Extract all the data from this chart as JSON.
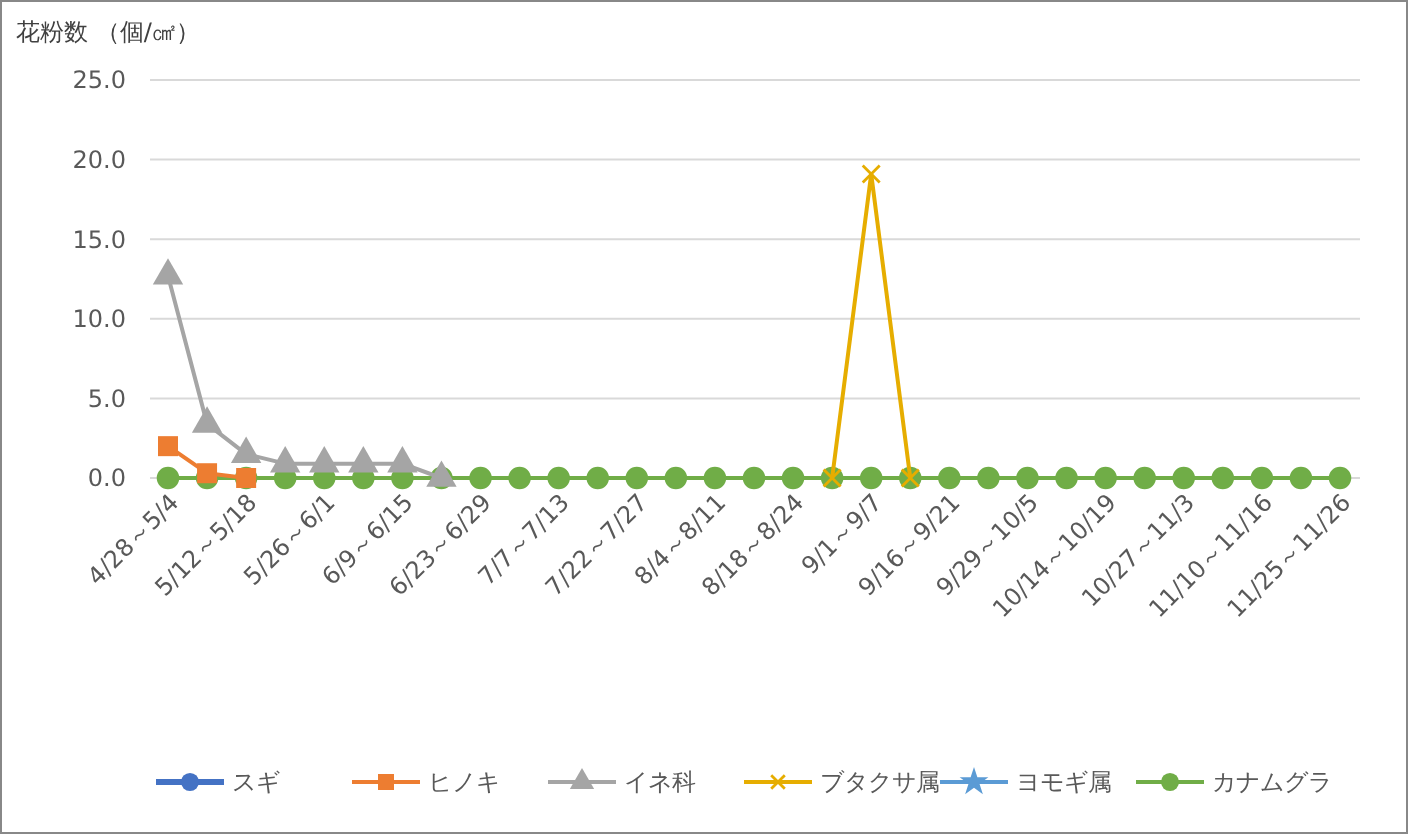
{
  "chart_data": {
    "type": "line",
    "ylabel": "花粉数 （個/㎠）",
    "categories": [
      "4/28～5/4",
      null,
      "5/12～5/18",
      null,
      "5/26～6/1",
      null,
      "6/9～6/15",
      null,
      "6/23～6/29",
      null,
      "7/7～7/13",
      null,
      "7/22～7/27",
      null,
      "8/4～8/11",
      null,
      "8/18～8/24",
      null,
      "9/1～9/7",
      null,
      "9/16～9/21",
      null,
      "9/29～10/5",
      null,
      "10/14～10/19",
      null,
      "10/27～11/3",
      null,
      "11/10～11/16",
      null,
      "11/25～11/26"
    ],
    "series": [
      {
        "name": "スギ",
        "color": "#4472c4",
        "marker": "circle",
        "values": [
          null,
          null,
          null,
          null,
          null,
          null,
          null,
          null,
          null,
          null,
          null,
          null,
          null,
          null,
          null,
          null,
          null,
          null,
          null,
          null,
          null,
          null,
          null,
          null,
          null,
          null,
          null,
          null,
          null,
          null,
          null
        ]
      },
      {
        "name": "ヒノキ",
        "color": "#ed7d31",
        "marker": "square",
        "values": [
          2.0,
          0.3,
          0,
          null,
          null,
          null,
          null,
          null,
          null,
          null,
          null,
          null,
          null,
          null,
          null,
          null,
          null,
          null,
          null,
          null,
          null,
          null,
          null,
          null,
          null,
          null,
          null,
          null,
          null,
          null,
          null
        ]
      },
      {
        "name": "イネ科",
        "color": "#a5a5a5",
        "marker": "triangle",
        "values": [
          12.7,
          3.4,
          1.5,
          0.9,
          0.9,
          0.9,
          0.9,
          0,
          null,
          null,
          null,
          null,
          null,
          null,
          null,
          null,
          null,
          null,
          null,
          null,
          null,
          null,
          null,
          null,
          null,
          null,
          null,
          null,
          null,
          null,
          null
        ]
      },
      {
        "name": "ブタクサ属",
        "color": "#e6ad00",
        "marker": "cross",
        "values": [
          null,
          null,
          null,
          null,
          null,
          null,
          null,
          null,
          null,
          null,
          null,
          null,
          null,
          null,
          null,
          null,
          null,
          0,
          19.1,
          0,
          null,
          null,
          null,
          null,
          null,
          null,
          null,
          null,
          null,
          null,
          null
        ]
      },
      {
        "name": "ヨモギ属",
        "color": "#5b9bd5",
        "marker": "star",
        "values": [
          null,
          null,
          null,
          null,
          null,
          null,
          null,
          null,
          null,
          null,
          null,
          null,
          null,
          null,
          null,
          null,
          null,
          null,
          null,
          null,
          null,
          null,
          null,
          null,
          null,
          null,
          null,
          null,
          null,
          null,
          null
        ]
      },
      {
        "name": "カナムグラ",
        "color": "#70ad47",
        "marker": "circle",
        "values": [
          0,
          0,
          0,
          0,
          0,
          0,
          0,
          0,
          0,
          0,
          0,
          0,
          0,
          0,
          0,
          0,
          0,
          0,
          0,
          0,
          0,
          0,
          0,
          0,
          0,
          0,
          0,
          0,
          0,
          0,
          0
        ]
      }
    ],
    "ylim": [
      0,
      25
    ],
    "yticks": [
      {
        "value": 0,
        "label": "0.0"
      },
      {
        "value": 5,
        "label": "5.0"
      },
      {
        "value": 10,
        "label": "10.0"
      },
      {
        "value": 15,
        "label": "15.0"
      },
      {
        "value": 20,
        "label": "20.0"
      },
      {
        "value": 25,
        "label": "25.0"
      }
    ],
    "grid": "y",
    "legend": "bottom",
    "line_style": "solid"
  }
}
